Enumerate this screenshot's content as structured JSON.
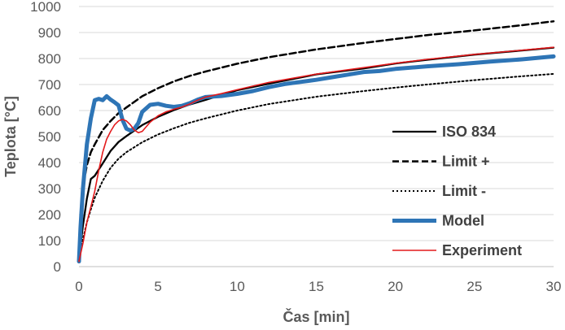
{
  "chart_data": {
    "type": "line",
    "title": "",
    "xlabel": "Čas [min]",
    "ylabel": "Teplota [°C]",
    "xlim": [
      0,
      30
    ],
    "ylim": [
      0,
      1000
    ],
    "xticks": [
      0,
      5,
      10,
      15,
      20,
      25,
      30
    ],
    "yticks": [
      0,
      100,
      200,
      300,
      400,
      500,
      600,
      700,
      800,
      900,
      1000
    ],
    "grid": "horizontal",
    "legend_position": "right-bottom",
    "series": [
      {
        "name": "ISO 834",
        "color": "#000000",
        "style": "solid",
        "x": [
          0,
          0.1,
          0.25,
          0.5,
          0.75,
          1,
          1.5,
          2,
          2.5,
          3,
          4,
          5,
          6,
          7,
          8,
          10,
          12,
          15,
          18,
          20,
          22,
          25,
          28,
          30
        ],
        "y": [
          20,
          80,
          158,
          261,
          337,
          349,
          397,
          445,
          479,
          502,
          544,
          576,
          602,
          623,
          641,
          678,
          703,
          739,
          762,
          781,
          795,
          815,
          831,
          842
        ]
      },
      {
        "name": "Limit +",
        "color": "#000000",
        "style": "dashed",
        "x": [
          0,
          0.1,
          0.25,
          0.5,
          0.75,
          1,
          1.5,
          2,
          2.5,
          3,
          4,
          5,
          6,
          7,
          8,
          10,
          12,
          15,
          18,
          20,
          22,
          25,
          28,
          30
        ],
        "y": [
          20,
          200,
          305,
          390,
          440,
          470,
          525,
          560,
          590,
          612,
          655,
          686,
          712,
          733,
          750,
          780,
          805,
          835,
          860,
          875,
          890,
          908,
          928,
          943
        ]
      },
      {
        "name": "Limit -",
        "color": "#000000",
        "style": "dotted",
        "x": [
          0,
          0.1,
          0.25,
          0.5,
          0.75,
          1,
          1.5,
          2,
          2.5,
          3,
          4,
          5,
          6,
          7,
          8,
          10,
          12,
          15,
          18,
          20,
          22,
          25,
          28,
          30
        ],
        "y": [
          20,
          60,
          105,
          170,
          220,
          265,
          330,
          380,
          415,
          440,
          478,
          508,
          532,
          553,
          570,
          600,
          625,
          653,
          675,
          688,
          700,
          717,
          732,
          741
        ]
      },
      {
        "name": "Model",
        "color": "#2e75b6",
        "style": "thick",
        "x": [
          0,
          0.1,
          0.25,
          0.5,
          0.75,
          1,
          1.25,
          1.5,
          1.75,
          2,
          2.25,
          2.5,
          2.75,
          3,
          3.25,
          3.5,
          3.75,
          4,
          4.5,
          5,
          5.5,
          6,
          6.5,
          7,
          7.5,
          8,
          9,
          10,
          11,
          12,
          13,
          14,
          15,
          16,
          17,
          18,
          19,
          20,
          22,
          24,
          26,
          28,
          30
        ],
        "y": [
          20,
          150,
          300,
          470,
          570,
          640,
          645,
          640,
          655,
          642,
          632,
          620,
          565,
          530,
          523,
          530,
          552,
          595,
          622,
          626,
          618,
          614,
          618,
          628,
          642,
          652,
          656,
          664,
          675,
          690,
          702,
          710,
          718,
          728,
          738,
          748,
          752,
          760,
          770,
          778,
          788,
          797,
          808
        ]
      },
      {
        "name": "Experiment",
        "color": "#e31a1c",
        "style": "solid",
        "x": [
          0,
          0.25,
          0.5,
          0.75,
          1,
          1.25,
          1.5,
          1.75,
          2,
          2.25,
          2.5,
          2.75,
          3,
          3.25,
          3.5,
          3.75,
          4,
          4.5,
          5,
          5.5,
          6,
          6.5,
          7,
          7.5,
          8,
          9,
          10,
          12,
          15,
          18,
          20,
          22,
          25,
          28,
          30
        ],
        "y": [
          20,
          90,
          170,
          230,
          290,
          370,
          440,
          490,
          520,
          545,
          560,
          566,
          560,
          545,
          525,
          515,
          520,
          555,
          580,
          595,
          605,
          613,
          625,
          640,
          652,
          665,
          680,
          708,
          740,
          765,
          782,
          797,
          816,
          832,
          843
        ]
      }
    ]
  }
}
